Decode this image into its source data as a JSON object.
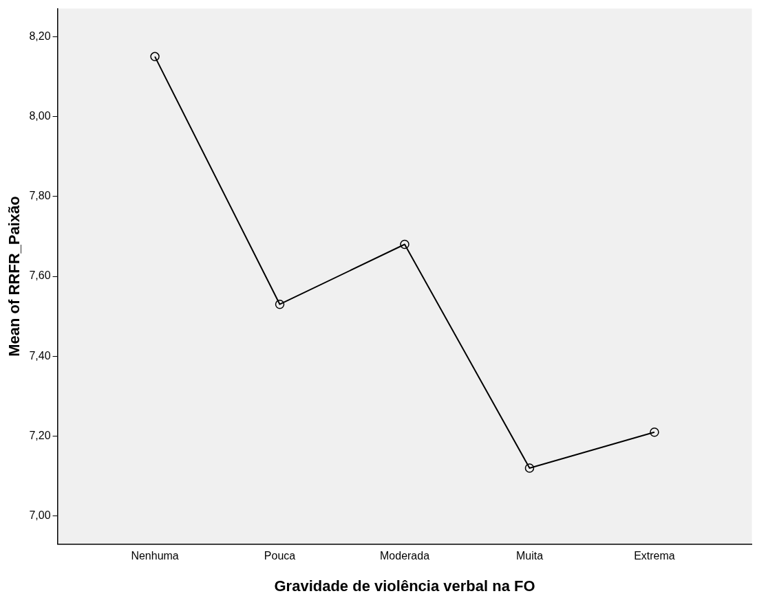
{
  "chart_data": {
    "type": "line",
    "xlabel": "Gravidade de violência verbal na FO",
    "ylabel": "Mean of RRFR_Paixão",
    "categories": [
      "Nenhuma",
      "Pouca",
      "Moderada",
      "Muita",
      "Extrema"
    ],
    "series": [
      {
        "color": "#000000",
        "values": [
          8.15,
          7.53,
          7.68,
          7.12,
          7.21
        ]
      }
    ],
    "ylim": [
      6.93,
      8.27
    ],
    "yticks": [
      {
        "value": 7.0,
        "label": "7,00"
      },
      {
        "value": 7.2,
        "label": "7,20"
      },
      {
        "value": 7.4,
        "label": "7,40"
      },
      {
        "value": 7.6,
        "label": "7,60"
      },
      {
        "value": 7.8,
        "label": "7,80"
      },
      {
        "value": 8.0,
        "label": "8,00"
      },
      {
        "value": 8.2,
        "label": "8,20"
      }
    ],
    "grid": false,
    "legend": false,
    "marker": "circle",
    "line_style": "solid"
  }
}
